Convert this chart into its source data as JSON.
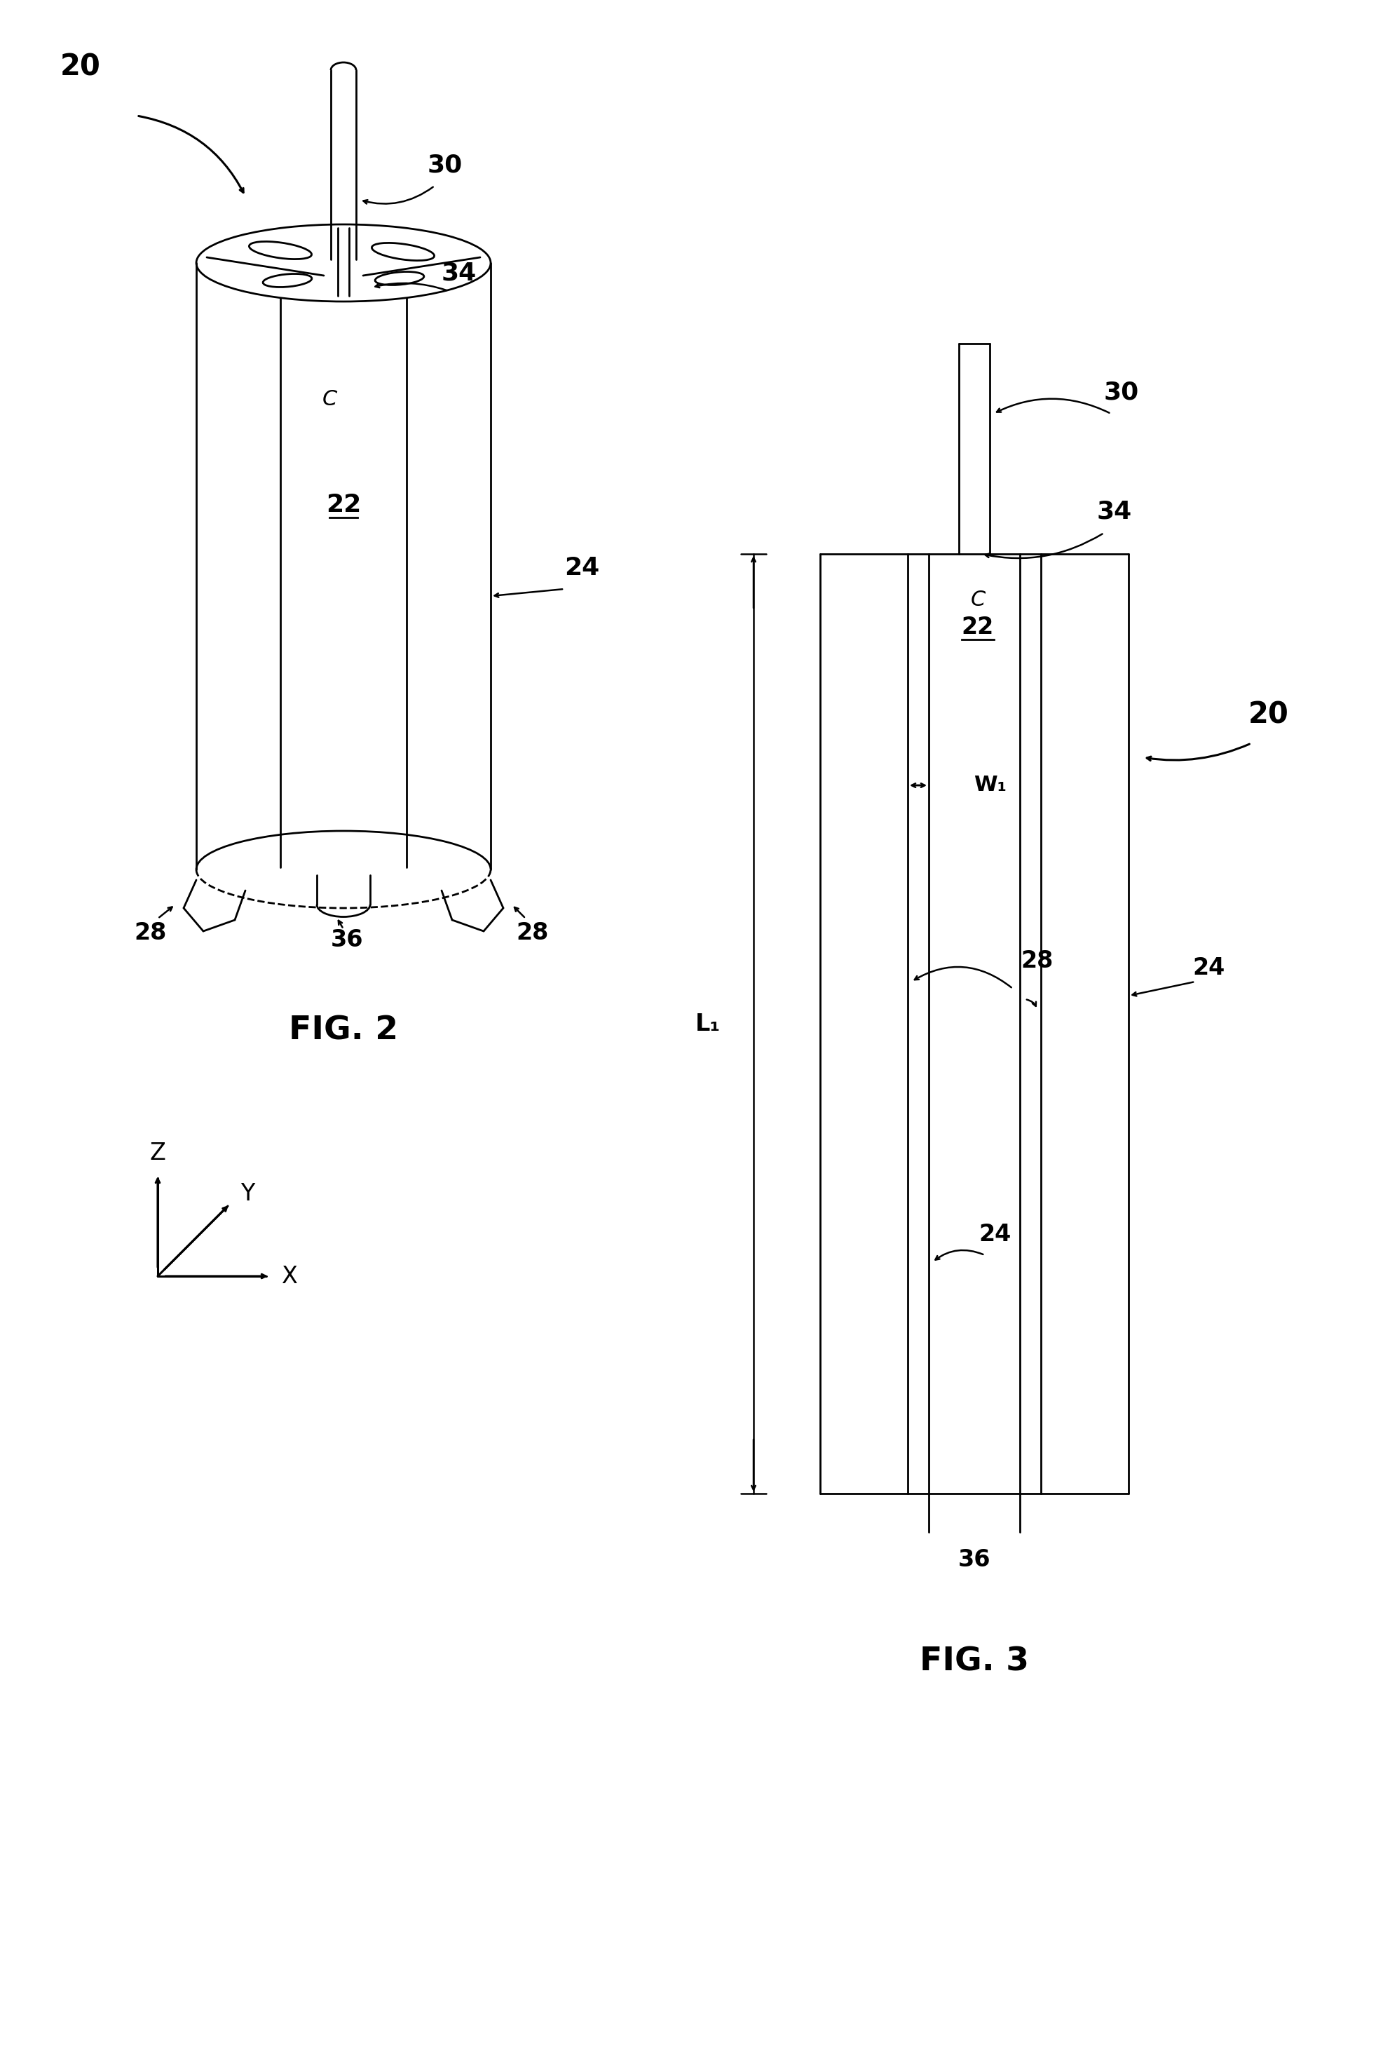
{
  "bg_color": "#ffffff",
  "line_color": "#000000",
  "fig_width": 19.93,
  "fig_height": 29.25,
  "fig2_label": "FIG. 2",
  "fig3_label": "FIG. 3",
  "labels": {
    "20_top": "20",
    "30_fig2": "30",
    "34_fig2": "34",
    "22_fig2": "22",
    "24_fig2": "24",
    "28_left": "28",
    "28_right": "28",
    "36_fig2": "36",
    "C_fig2": "C",
    "30_fig3": "30",
    "34_fig3": "34",
    "C_fig3": "C",
    "22_fig3": "22",
    "W1_fig3": "W₁",
    "28_fig3": "28",
    "24_fig3": "24",
    "24_fig3_right": "24",
    "36_fig3": "36",
    "L1_fig3": "L₁",
    "20_fig3": "20",
    "Z_axis": "Z",
    "Y_axis": "Y",
    "X_axis": "X"
  }
}
